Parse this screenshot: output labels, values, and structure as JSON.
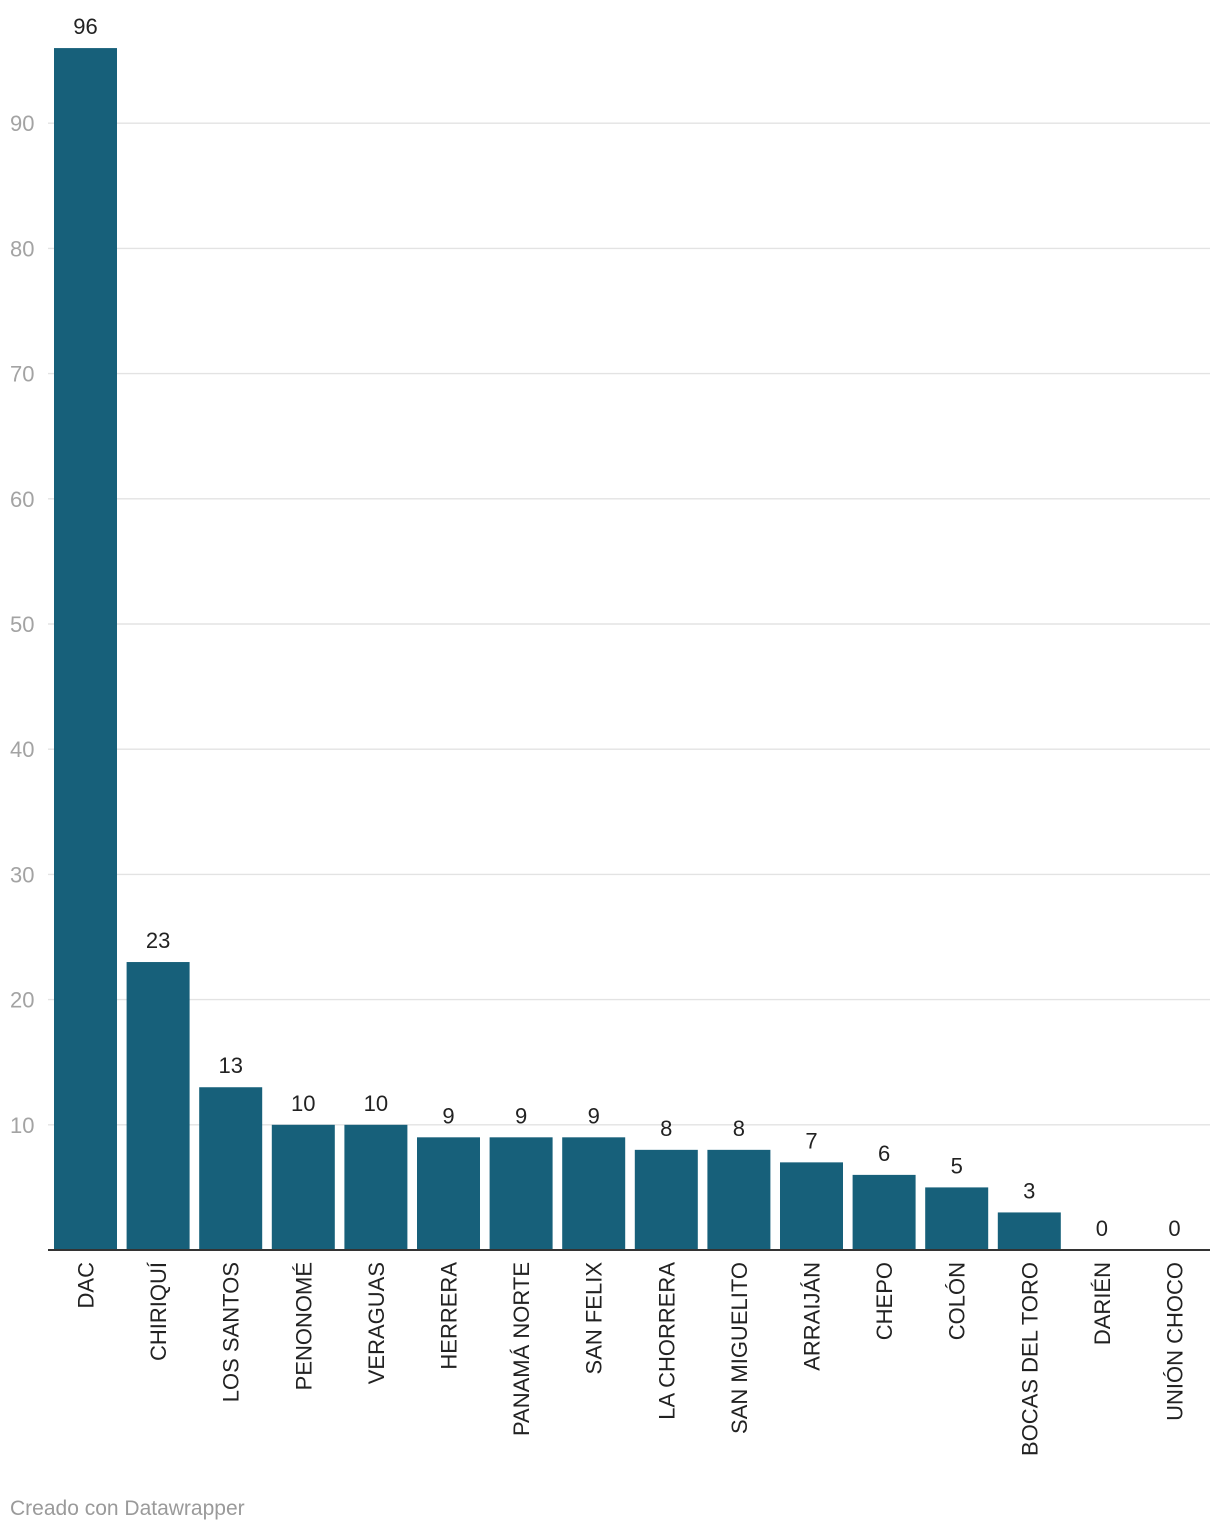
{
  "chart_data": {
    "type": "bar",
    "title": "",
    "xlabel": "",
    "ylabel": "",
    "ylim": [
      0,
      96
    ],
    "yticks": [
      10,
      20,
      30,
      40,
      50,
      60,
      70,
      80,
      90
    ],
    "grid": true,
    "bar_color": "#17607a",
    "categories": [
      "DAC",
      "CHIRIQUÍ",
      "LOS SANTOS",
      "PENONOMÉ",
      "VERAGUAS",
      "HERRERA",
      "PANAMÁ NORTE",
      "SAN FELIX",
      "LA CHORRERA",
      "SAN MIGUELITO",
      "ARRAIJÁN",
      "CHEPO",
      "COLÓN",
      "BOCAS DEL TORO",
      "DARIÉN",
      "UNIÓN CHOCO"
    ],
    "values": [
      96,
      23,
      13,
      10,
      10,
      9,
      9,
      9,
      8,
      8,
      7,
      6,
      5,
      3,
      0,
      0
    ]
  },
  "footer": {
    "credit": "Creado con Datawrapper"
  }
}
